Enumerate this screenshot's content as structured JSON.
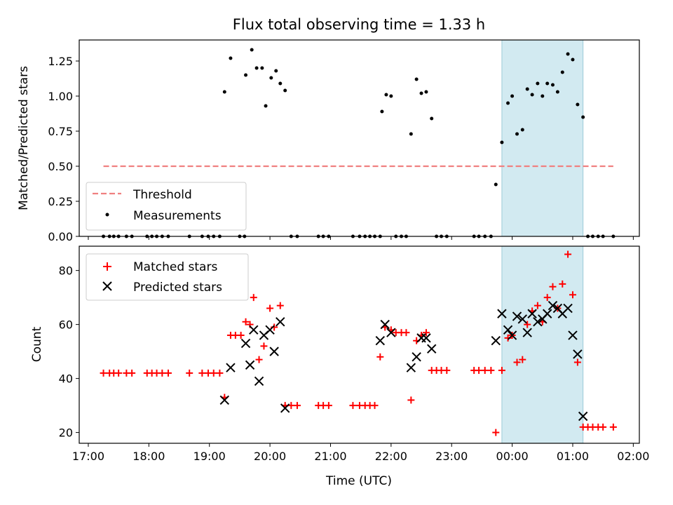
{
  "chart_data": [
    {
      "type": "scatter",
      "title": "Flux total observing time = 1.33 h",
      "ylabel": "Matched/Predicted stars",
      "xlabel": "",
      "ylim": [
        0.0,
        1.4
      ],
      "yticks": [
        "0.00",
        "0.25",
        "0.50",
        "0.75",
        "1.00",
        "1.25"
      ],
      "xticks": [
        "17:00",
        "18:00",
        "19:00",
        "20:00",
        "21:00",
        "22:00",
        "23:00",
        "00:00",
        "01:00",
        "02:00"
      ],
      "xlim_hours": [
        16.85,
        26.1
      ],
      "highlight_span_hours": [
        23.83,
        25.17
      ],
      "legend_position": "lower-left",
      "threshold": {
        "name": "Threshold",
        "value": 0.5,
        "x_start": 17.25,
        "x_end": 25.67,
        "color": "#f08080"
      },
      "measurements_name": "Measurements",
      "measurements": [
        [
          17.25,
          0
        ],
        [
          17.35,
          0
        ],
        [
          17.42,
          0
        ],
        [
          17.5,
          0
        ],
        [
          17.63,
          0
        ],
        [
          17.72,
          0
        ],
        [
          17.97,
          0
        ],
        [
          18.05,
          0
        ],
        [
          18.13,
          0
        ],
        [
          18.22,
          0
        ],
        [
          18.32,
          0
        ],
        [
          18.67,
          0
        ],
        [
          18.88,
          0
        ],
        [
          18.98,
          0
        ],
        [
          19.07,
          0
        ],
        [
          19.17,
          0
        ],
        [
          19.25,
          1.03
        ],
        [
          19.35,
          1.27
        ],
        [
          19.5,
          0
        ],
        [
          19.58,
          0
        ],
        [
          19.6,
          1.15
        ],
        [
          19.7,
          1.33
        ],
        [
          19.78,
          1.2
        ],
        [
          19.87,
          1.2
        ],
        [
          19.93,
          0.93
        ],
        [
          20.02,
          1.13
        ],
        [
          20.1,
          1.18
        ],
        [
          20.17,
          1.09
        ],
        [
          20.25,
          1.04
        ],
        [
          20.35,
          0
        ],
        [
          20.45,
          0
        ],
        [
          20.8,
          0
        ],
        [
          20.88,
          0
        ],
        [
          20.97,
          0
        ],
        [
          21.37,
          0
        ],
        [
          21.48,
          0
        ],
        [
          21.57,
          0
        ],
        [
          21.65,
          0
        ],
        [
          21.73,
          0
        ],
        [
          21.82,
          0
        ],
        [
          21.85,
          0.89
        ],
        [
          21.92,
          1.01
        ],
        [
          22.0,
          1.0
        ],
        [
          22.08,
          0
        ],
        [
          22.17,
          0
        ],
        [
          22.25,
          0
        ],
        [
          22.33,
          0.73
        ],
        [
          22.42,
          1.12
        ],
        [
          22.5,
          1.02
        ],
        [
          22.58,
          1.03
        ],
        [
          22.67,
          0.84
        ],
        [
          22.75,
          0
        ],
        [
          22.83,
          0
        ],
        [
          22.92,
          0
        ],
        [
          23.37,
          0
        ],
        [
          23.45,
          0
        ],
        [
          23.55,
          0
        ],
        [
          23.65,
          0
        ],
        [
          23.73,
          0.37
        ],
        [
          23.83,
          0.67
        ],
        [
          23.93,
          0.95
        ],
        [
          24.0,
          1.0
        ],
        [
          24.08,
          0.73
        ],
        [
          24.17,
          0.76
        ],
        [
          24.25,
          1.05
        ],
        [
          24.33,
          1.01
        ],
        [
          24.42,
          1.09
        ],
        [
          24.5,
          1.0
        ],
        [
          24.58,
          1.09
        ],
        [
          24.67,
          1.08
        ],
        [
          24.75,
          1.03
        ],
        [
          24.83,
          1.17
        ],
        [
          24.92,
          1.3
        ],
        [
          25.0,
          1.26
        ],
        [
          25.08,
          0.94
        ],
        [
          25.17,
          0.85
        ],
        [
          25.25,
          0
        ],
        [
          25.33,
          0
        ],
        [
          25.42,
          0
        ],
        [
          25.5,
          0
        ],
        [
          25.67,
          0
        ]
      ]
    },
    {
      "type": "scatter",
      "title": "",
      "ylabel": "Count",
      "xlabel": "Time (UTC)",
      "ylim": [
        16,
        89
      ],
      "yticks": [
        "20",
        "40",
        "60",
        "80"
      ],
      "xticks": [
        "17:00",
        "18:00",
        "19:00",
        "20:00",
        "21:00",
        "22:00",
        "23:00",
        "00:00",
        "01:00",
        "02:00"
      ],
      "xlim_hours": [
        16.85,
        26.1
      ],
      "highlight_span_hours": [
        23.83,
        25.17
      ],
      "legend_position": "upper-left",
      "matched_name": "Matched stars",
      "predicted_name": "Predicted stars",
      "matched": [
        [
          17.25,
          42
        ],
        [
          17.35,
          42
        ],
        [
          17.42,
          42
        ],
        [
          17.5,
          42
        ],
        [
          17.63,
          42
        ],
        [
          17.72,
          42
        ],
        [
          17.97,
          42
        ],
        [
          18.05,
          42
        ],
        [
          18.13,
          42
        ],
        [
          18.22,
          42
        ],
        [
          18.32,
          42
        ],
        [
          18.67,
          42
        ],
        [
          18.88,
          42
        ],
        [
          18.98,
          42
        ],
        [
          19.07,
          42
        ],
        [
          19.17,
          42
        ],
        [
          19.25,
          33
        ],
        [
          19.35,
          56
        ],
        [
          19.43,
          56
        ],
        [
          19.52,
          56
        ],
        [
          19.6,
          61
        ],
        [
          19.67,
          60
        ],
        [
          19.73,
          70
        ],
        [
          19.82,
          47
        ],
        [
          19.9,
          52
        ],
        [
          20.0,
          66
        ],
        [
          20.07,
          59
        ],
        [
          20.17,
          67
        ],
        [
          20.25,
          30
        ],
        [
          20.35,
          30
        ],
        [
          20.45,
          30
        ],
        [
          20.8,
          30
        ],
        [
          20.88,
          30
        ],
        [
          20.97,
          30
        ],
        [
          21.37,
          30
        ],
        [
          21.48,
          30
        ],
        [
          21.57,
          30
        ],
        [
          21.65,
          30
        ],
        [
          21.73,
          30
        ],
        [
          21.82,
          48
        ],
        [
          21.9,
          59
        ],
        [
          22.0,
          58
        ],
        [
          22.08,
          57
        ],
        [
          22.17,
          57
        ],
        [
          22.25,
          57
        ],
        [
          22.33,
          32
        ],
        [
          22.42,
          54
        ],
        [
          22.5,
          56
        ],
        [
          22.58,
          57
        ],
        [
          22.67,
          43
        ],
        [
          22.75,
          43
        ],
        [
          22.83,
          43
        ],
        [
          22.92,
          43
        ],
        [
          23.37,
          43
        ],
        [
          23.45,
          43
        ],
        [
          23.55,
          43
        ],
        [
          23.65,
          43
        ],
        [
          23.73,
          20
        ],
        [
          23.83,
          43
        ],
        [
          23.93,
          55
        ],
        [
          24.0,
          56
        ],
        [
          24.08,
          46
        ],
        [
          24.17,
          47
        ],
        [
          24.25,
          60
        ],
        [
          24.33,
          65
        ],
        [
          24.42,
          67
        ],
        [
          24.5,
          61
        ],
        [
          24.58,
          70
        ],
        [
          24.67,
          74
        ],
        [
          24.75,
          66
        ],
        [
          24.83,
          75
        ],
        [
          24.92,
          86
        ],
        [
          25.0,
          71
        ],
        [
          25.08,
          46
        ],
        [
          25.17,
          22
        ],
        [
          25.25,
          22
        ],
        [
          25.33,
          22
        ],
        [
          25.42,
          22
        ],
        [
          25.5,
          22
        ],
        [
          25.67,
          22
        ]
      ],
      "predicted": [
        [
          19.25,
          32
        ],
        [
          19.35,
          44
        ],
        [
          19.6,
          53
        ],
        [
          19.67,
          45
        ],
        [
          19.73,
          58
        ],
        [
          19.82,
          39
        ],
        [
          19.9,
          56
        ],
        [
          20.0,
          58
        ],
        [
          20.07,
          50
        ],
        [
          20.17,
          61
        ],
        [
          20.25,
          29
        ],
        [
          21.82,
          54
        ],
        [
          21.9,
          60
        ],
        [
          22.0,
          57
        ],
        [
          22.33,
          44
        ],
        [
          22.42,
          48
        ],
        [
          22.5,
          55
        ],
        [
          22.58,
          55
        ],
        [
          22.67,
          51
        ],
        [
          23.73,
          54
        ],
        [
          23.83,
          64
        ],
        [
          23.93,
          58
        ],
        [
          24.0,
          56
        ],
        [
          24.08,
          63
        ],
        [
          24.17,
          62
        ],
        [
          24.25,
          57
        ],
        [
          24.33,
          64
        ],
        [
          24.42,
          61
        ],
        [
          24.5,
          62
        ],
        [
          24.58,
          64
        ],
        [
          24.67,
          67
        ],
        [
          24.75,
          66
        ],
        [
          24.83,
          64
        ],
        [
          24.92,
          66
        ],
        [
          25.0,
          56
        ],
        [
          25.08,
          49
        ],
        [
          25.17,
          26
        ]
      ]
    }
  ]
}
